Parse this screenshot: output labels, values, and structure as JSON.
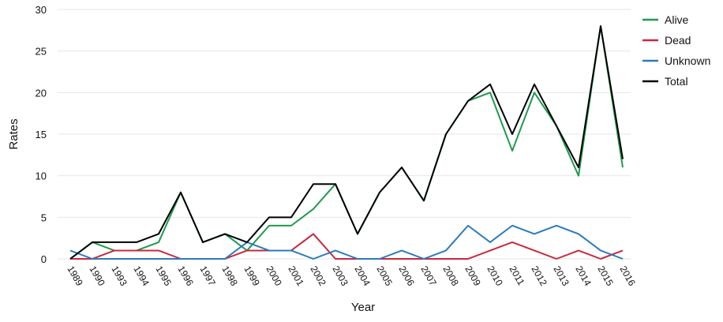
{
  "chart_data": {
    "type": "line",
    "x_label": "Year",
    "y_label": "Rates",
    "categories": [
      "1989",
      "1990",
      "1993",
      "1994",
      "1995",
      "1996",
      "1997",
      "1998",
      "1999",
      "2000",
      "2001",
      "2002",
      "2003",
      "2004",
      "2005",
      "2006",
      "2007",
      "2008",
      "2009",
      "2010",
      "2011",
      "2012",
      "2013",
      "2014",
      "2015",
      "2016"
    ],
    "series": [
      {
        "name": "Alive",
        "color": "#1e9a4f",
        "values": [
          0,
          2,
          1,
          1,
          2,
          8,
          2,
          3,
          1,
          4,
          4,
          6,
          9,
          3,
          8,
          11,
          7,
          15,
          19,
          20,
          13,
          20,
          16,
          10,
          28,
          11
        ]
      },
      {
        "name": "Dead",
        "color": "#c9283e",
        "values": [
          0,
          0,
          1,
          1,
          1,
          0,
          0,
          0,
          1,
          1,
          1,
          3,
          0,
          0,
          0,
          0,
          0,
          0,
          0,
          1,
          2,
          1,
          0,
          1,
          0,
          1
        ]
      },
      {
        "name": "Unknown",
        "color": "#2b7bba",
        "values": [
          1,
          0,
          0,
          0,
          0,
          0,
          0,
          0,
          2,
          1,
          1,
          0,
          1,
          0,
          0,
          1,
          0,
          1,
          4,
          2,
          4,
          3,
          4,
          3,
          1,
          0
        ]
      },
      {
        "name": "Total",
        "color": "#000000",
        "values": [
          0,
          2,
          2,
          2,
          3,
          8,
          2,
          3,
          2,
          5,
          5,
          9,
          9,
          3,
          8,
          11,
          7,
          15,
          19,
          21,
          15,
          21,
          16,
          11,
          28,
          12
        ]
      }
    ],
    "ylim": [
      0,
      30
    ],
    "yticks": [
      0,
      5,
      10,
      15,
      20,
      25,
      30
    ],
    "grid": true,
    "legend": "right"
  }
}
